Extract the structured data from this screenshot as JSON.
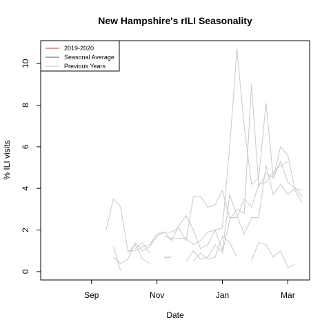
{
  "chart_data": {
    "type": "line",
    "title": "New Hampshire's rILI Seasonality",
    "xlabel": "Date",
    "ylabel": "% ILI visits",
    "x_ticks": [
      {
        "label": "Sep",
        "week": 4
      },
      {
        "label": "Nov",
        "week": 13
      },
      {
        "label": "Jan",
        "week": 22
      },
      {
        "label": "Mar",
        "week": 31
      }
    ],
    "xlim": [
      -3,
      34
    ],
    "ylim": [
      -0.4,
      11.1
    ],
    "y_ticks": [
      0,
      2,
      4,
      6,
      8,
      10
    ],
    "legend": {
      "position": "top-left",
      "entries": [
        {
          "label": "2019-2020",
          "color": "#e8242e"
        },
        {
          "label": "Seasonal Average",
          "color": "#555555"
        },
        {
          "label": "Previous Years",
          "color": "#c0c0c0"
        }
      ]
    },
    "colors": {
      "previous_years": "#c8c8c8"
    },
    "series": [
      {
        "x": [
          6,
          7,
          8,
          9,
          10,
          11,
          12,
          13,
          14,
          15,
          16,
          17,
          18,
          19,
          20,
          21,
          22,
          23,
          24,
          25,
          26,
          27,
          28,
          29,
          30,
          31,
          32,
          33
        ],
        "y": [
          2.0,
          3.5,
          3.1,
          1.0,
          1.0,
          1.2,
          1.3,
          1.8,
          1.9,
          1.9,
          2.1,
          1.5,
          3.6,
          3.6,
          3.1,
          3.2,
          3.9,
          2.6,
          2.6,
          3.5,
          3.1,
          4.2,
          4.3,
          4.8,
          5.1,
          5.3,
          null,
          null
        ]
      },
      {
        "x": [
          7,
          8,
          9,
          10,
          11,
          12,
          13,
          14,
          15,
          16,
          17,
          18,
          19,
          20,
          21,
          22,
          23,
          24,
          25,
          26,
          27,
          28,
          29,
          30,
          31,
          32,
          33
        ],
        "y": [
          0.7,
          0.4,
          0.6,
          1.4,
          1.0,
          1.2,
          1.7,
          1.9,
          1.5,
          2.2,
          2.7,
          2.0,
          1.1,
          1.3,
          2.0,
          2.1,
          6.0,
          10.7,
          7.0,
          4.2,
          4.5,
          8.1,
          4.5,
          6.0,
          5.6,
          3.9,
          3.3
        ]
      },
      {
        "x": [
          7,
          8,
          9,
          10,
          11,
          12,
          13,
          14,
          15,
          16,
          17,
          18,
          19,
          20,
          21,
          22,
          23,
          24,
          25,
          26,
          27,
          28,
          29,
          30,
          31,
          32,
          33
        ],
        "y": [
          1.2,
          0.05,
          null,
          1.1,
          1.4,
          0.9,
          null,
          1.7,
          1.6,
          1.6,
          1.6,
          1.3,
          1.5,
          1.9,
          2.0,
          1.0,
          3.7,
          2.7,
          1.8,
          2.6,
          2.6,
          5.1,
          3.7,
          4.2,
          3.7,
          4.0,
          3.9
        ]
      },
      {
        "x": [
          9,
          10,
          11,
          12,
          13,
          14,
          15,
          16,
          17,
          18,
          19,
          20,
          21,
          22,
          23,
          24,
          25,
          26,
          27,
          28,
          29,
          30,
          31,
          32,
          33
        ],
        "y": [
          0.9,
          1.3,
          0.6,
          0.4,
          null,
          0.7,
          0.7,
          null,
          0.5,
          1.0,
          0.6,
          0.7,
          1.3,
          0.9,
          2.5,
          3.0,
          2.8,
          9.0,
          4.1,
          4.7,
          4.5,
          5.3,
          4.3,
          4.0,
          3.6
        ]
      },
      {
        "x": [
          16,
          17,
          18,
          19,
          20,
          21,
          22,
          23,
          24,
          25,
          26,
          27,
          28,
          29,
          30,
          31,
          32,
          33
        ],
        "y": [
          null,
          null,
          0.5,
          0.9,
          0.6,
          0.7,
          1.7,
          1.4,
          0.7,
          null,
          0.55,
          1.4,
          1.3,
          0.7,
          1.0,
          0.2,
          0.35,
          null
        ]
      },
      {
        "x": [
          14,
          15
        ],
        "y": [
          0.65,
          0.7
        ]
      }
    ]
  }
}
